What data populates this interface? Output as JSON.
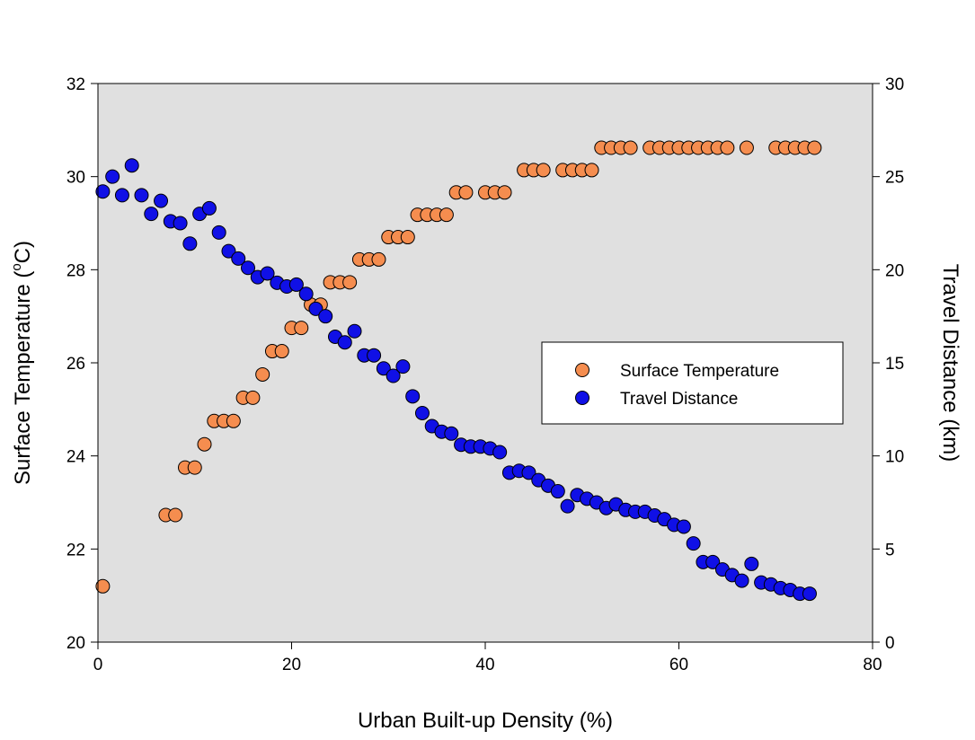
{
  "chart_data": {
    "type": "scatter",
    "title": "",
    "xlabel": "Urban Built-up Density (%)",
    "ylabel_left": "Surface Temperature (",
    "ylabel_left_sup": "o",
    "ylabel_left_unit": "C)",
    "ylabel_right": "Travel Distance (km)",
    "xlim": [
      0,
      80
    ],
    "ylim_left": [
      20,
      32
    ],
    "ylim_right": [
      0,
      30
    ],
    "x_ticks": [
      "0",
      "20",
      "40",
      "60",
      "80"
    ],
    "y_left_ticks": [
      "20",
      "22",
      "24",
      "26",
      "28",
      "30",
      "32"
    ],
    "y_right_ticks": [
      "0",
      "5",
      "10",
      "15",
      "20",
      "25",
      "30"
    ],
    "grid": false,
    "plot_background": "#e0e0e0",
    "legend_position": "center-right",
    "series": [
      {
        "name": "Surface Temperature",
        "axis": "left",
        "color": "#f58d4f",
        "points": [
          [
            0.5,
            21.2
          ],
          [
            7,
            22.73
          ],
          [
            8,
            22.73
          ],
          [
            9,
            23.75
          ],
          [
            10,
            23.75
          ],
          [
            11,
            24.25
          ],
          [
            12,
            24.75
          ],
          [
            13,
            24.75
          ],
          [
            14,
            24.75
          ],
          [
            15,
            25.25
          ],
          [
            16,
            25.25
          ],
          [
            17,
            25.75
          ],
          [
            18,
            26.25
          ],
          [
            19,
            26.25
          ],
          [
            20,
            26.75
          ],
          [
            21,
            26.75
          ],
          [
            22,
            27.25
          ],
          [
            23,
            27.25
          ],
          [
            24,
            27.73
          ],
          [
            25,
            27.73
          ],
          [
            26,
            27.73
          ],
          [
            27,
            28.22
          ],
          [
            28,
            28.22
          ],
          [
            29,
            28.22
          ],
          [
            30,
            28.7
          ],
          [
            31,
            28.7
          ],
          [
            32,
            28.7
          ],
          [
            33,
            29.18
          ],
          [
            34,
            29.18
          ],
          [
            35,
            29.18
          ],
          [
            36,
            29.18
          ],
          [
            37,
            29.66
          ],
          [
            38,
            29.66
          ],
          [
            40,
            29.66
          ],
          [
            41,
            29.66
          ],
          [
            42,
            29.66
          ],
          [
            44,
            30.14
          ],
          [
            45,
            30.14
          ],
          [
            46,
            30.14
          ],
          [
            48,
            30.14
          ],
          [
            49,
            30.14
          ],
          [
            50,
            30.14
          ],
          [
            51,
            30.14
          ],
          [
            52,
            30.62
          ],
          [
            53,
            30.62
          ],
          [
            54,
            30.62
          ],
          [
            55,
            30.62
          ],
          [
            57,
            30.62
          ],
          [
            58,
            30.62
          ],
          [
            59,
            30.62
          ],
          [
            60,
            30.62
          ],
          [
            61,
            30.62
          ],
          [
            62,
            30.62
          ],
          [
            63,
            30.62
          ],
          [
            64,
            30.62
          ],
          [
            65,
            30.62
          ],
          [
            67,
            30.62
          ],
          [
            70,
            30.62
          ],
          [
            71,
            30.62
          ],
          [
            72,
            30.62
          ],
          [
            73,
            30.62
          ],
          [
            74,
            30.62
          ]
        ]
      },
      {
        "name": "Travel Distance",
        "axis": "right",
        "color": "#1010e6",
        "points": [
          [
            0.5,
            24.2
          ],
          [
            1.5,
            25
          ],
          [
            2.5,
            24
          ],
          [
            3.5,
            25.6
          ],
          [
            4.5,
            24
          ],
          [
            5.5,
            23
          ],
          [
            6.5,
            23.7
          ],
          [
            7.5,
            22.6
          ],
          [
            8.5,
            22.5
          ],
          [
            9.5,
            21.4
          ],
          [
            10.5,
            23
          ],
          [
            11.5,
            23.3
          ],
          [
            12.5,
            22
          ],
          [
            13.5,
            21
          ],
          [
            14.5,
            20.6
          ],
          [
            15.5,
            20.1
          ],
          [
            16.5,
            19.6
          ],
          [
            17.5,
            19.8
          ],
          [
            18.5,
            19.3
          ],
          [
            19.5,
            19.1
          ],
          [
            20.5,
            19.2
          ],
          [
            21.5,
            18.7
          ],
          [
            22.5,
            17.9
          ],
          [
            23.5,
            17.5
          ],
          [
            24.5,
            16.4
          ],
          [
            25.5,
            16.1
          ],
          [
            26.5,
            16.7
          ],
          [
            27.5,
            15.4
          ],
          [
            28.5,
            15.4
          ],
          [
            29.5,
            14.7
          ],
          [
            30.5,
            14.3
          ],
          [
            31.5,
            14.8
          ],
          [
            32.5,
            13.2
          ],
          [
            33.5,
            12.3
          ],
          [
            34.5,
            11.6
          ],
          [
            35.5,
            11.3
          ],
          [
            36.5,
            11.2
          ],
          [
            37.5,
            10.6
          ],
          [
            38.5,
            10.5
          ],
          [
            39.5,
            10.5
          ],
          [
            40.5,
            10.4
          ],
          [
            41.5,
            10.2
          ],
          [
            42.5,
            9.1
          ],
          [
            43.5,
            9.2
          ],
          [
            44.5,
            9.1
          ],
          [
            45.5,
            8.7
          ],
          [
            46.5,
            8.4
          ],
          [
            47.5,
            8.1
          ],
          [
            48.5,
            7.3
          ],
          [
            49.5,
            7.9
          ],
          [
            50.5,
            7.7
          ],
          [
            51.5,
            7.5
          ],
          [
            52.5,
            7.2
          ],
          [
            53.5,
            7.4
          ],
          [
            54.5,
            7.1
          ],
          [
            55.5,
            7.0
          ],
          [
            56.5,
            7.0
          ],
          [
            57.5,
            6.8
          ],
          [
            58.5,
            6.6
          ],
          [
            59.5,
            6.3
          ],
          [
            60.5,
            6.2
          ],
          [
            61.5,
            5.3
          ],
          [
            62.5,
            4.3
          ],
          [
            63.5,
            4.3
          ],
          [
            64.5,
            3.9
          ],
          [
            65.5,
            3.6
          ],
          [
            66.5,
            3.3
          ],
          [
            67.5,
            4.2
          ],
          [
            68.5,
            3.2
          ],
          [
            69.5,
            3.1
          ],
          [
            70.5,
            2.9
          ],
          [
            71.5,
            2.8
          ],
          [
            72.5,
            2.6
          ],
          [
            73.5,
            2.6
          ]
        ]
      }
    ]
  }
}
